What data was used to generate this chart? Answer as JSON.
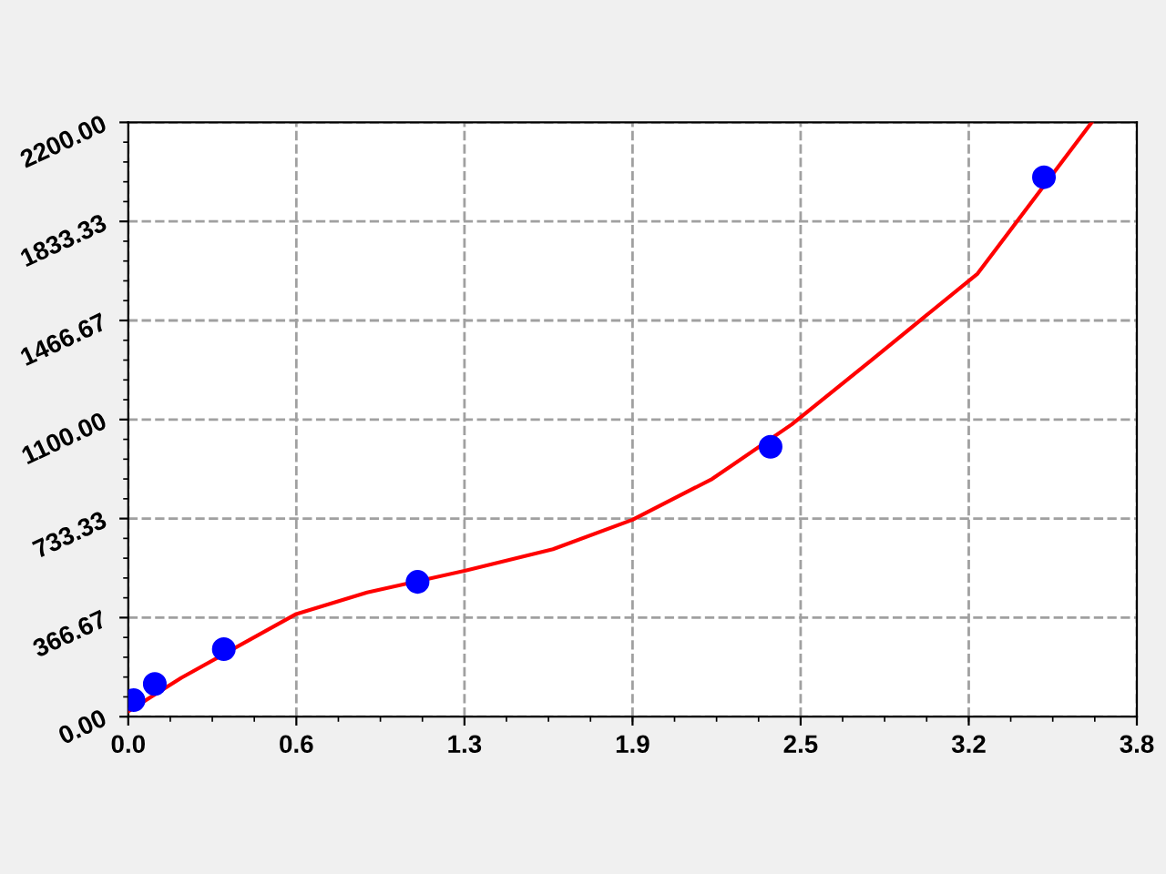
{
  "chart_data": {
    "type": "scatter",
    "series": [
      {
        "type": "line",
        "color": "#ff0000",
        "marker": "none",
        "line_style": "solid",
        "x": [
          0.0,
          0.2,
          0.633,
          0.9,
          1.267,
          1.6,
          1.9,
          2.2,
          2.5,
          2.8,
          3.2,
          3.63
        ],
        "values": [
          20,
          144,
          380,
          460,
          540,
          620,
          729,
          880,
          1082,
          1320,
          1640,
          2200
        ]
      },
      {
        "color": "#0000ff",
        "marker": "circle",
        "x": [
          0.02,
          0.1,
          0.36,
          1.09,
          2.42,
          3.45
        ],
        "values": [
          61,
          121,
          250,
          499,
          999,
          1997
        ]
      }
    ],
    "xlim": [
      0,
      3.8
    ],
    "ylim": [
      0,
      2200
    ],
    "xticks": [
      {
        "value": 0,
        "label": "0.0"
      },
      {
        "value": 0.6333,
        "label": "0.6"
      },
      {
        "value": 1.2667,
        "label": "1.3"
      },
      {
        "value": 1.9,
        "label": "1.9"
      },
      {
        "value": 2.5333,
        "label": "2.5"
      },
      {
        "value": 3.1667,
        "label": "3.2"
      },
      {
        "value": 3.8,
        "label": "3.8"
      }
    ],
    "yticks": [
      {
        "value": 0,
        "label": "0.00"
      },
      {
        "value": 366.67,
        "label": "366.67"
      },
      {
        "value": 733.33,
        "label": "733.33"
      },
      {
        "value": 1100,
        "label": "1100.00"
      },
      {
        "value": 1466.67,
        "label": "1466.67"
      },
      {
        "value": 1833.33,
        "label": "1833.33"
      },
      {
        "value": 2200,
        "label": "2200.00"
      }
    ],
    "grid": true,
    "legend": false
  }
}
